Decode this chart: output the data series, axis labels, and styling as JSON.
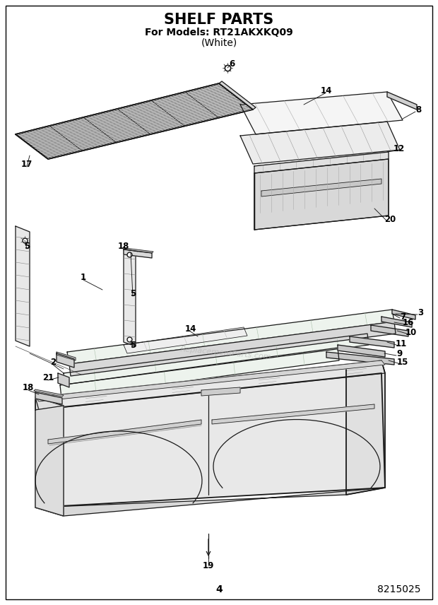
{
  "title": "SHELF PARTS",
  "subtitle": "For Models: RT21AKXKQ09",
  "subtitle2": "(White)",
  "page_number": "4",
  "part_number": "8215025",
  "background_color": "#ffffff",
  "title_fontsize": 15,
  "subtitle_fontsize": 10,
  "page_num_fontsize": 10,
  "watermark": "ReplacementParts.com",
  "watermark_color": "#aaaaaa",
  "watermark_alpha": 0.5,
  "line_color": "#1a1a1a",
  "lw_heavy": 1.3,
  "lw_med": 0.9,
  "lw_light": 0.55
}
